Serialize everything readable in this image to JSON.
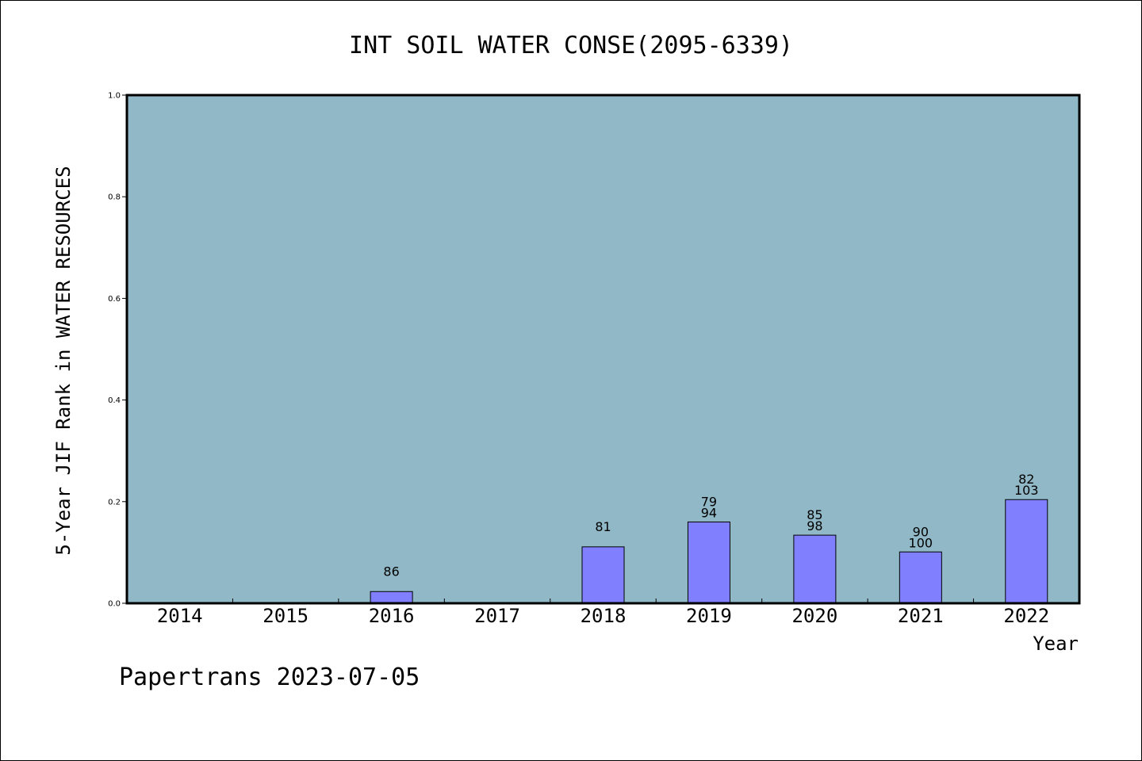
{
  "chart_data": {
    "type": "bar",
    "title": "INT SOIL WATER CONSE(2095-6339)",
    "xlabel": "Year",
    "ylabel": "5-Year JIF Rank in WATER RESOURCES",
    "ylim": [
      0,
      1.0
    ],
    "yticks": [
      "0.0",
      "0.2",
      "0.4",
      "0.6",
      "0.8",
      "1.0"
    ],
    "categories": [
      "2014",
      "2015",
      "2016",
      "2017",
      "2018",
      "2019",
      "2020",
      "2021",
      "2022"
    ],
    "values": [
      null,
      null,
      0.023,
      null,
      0.111,
      0.16,
      0.134,
      0.101,
      0.204
    ],
    "labels_top": [
      null,
      null,
      "86",
      null,
      "81",
      "79",
      "85",
      "90",
      "82"
    ],
    "labels_bottom": [
      null,
      null,
      null,
      null,
      null,
      "94",
      "98",
      "100",
      "103"
    ],
    "grid": false,
    "bar_color": "#8080ff",
    "plot_background": "#90b8c6"
  },
  "footer": "Papertrans 2023-07-05"
}
